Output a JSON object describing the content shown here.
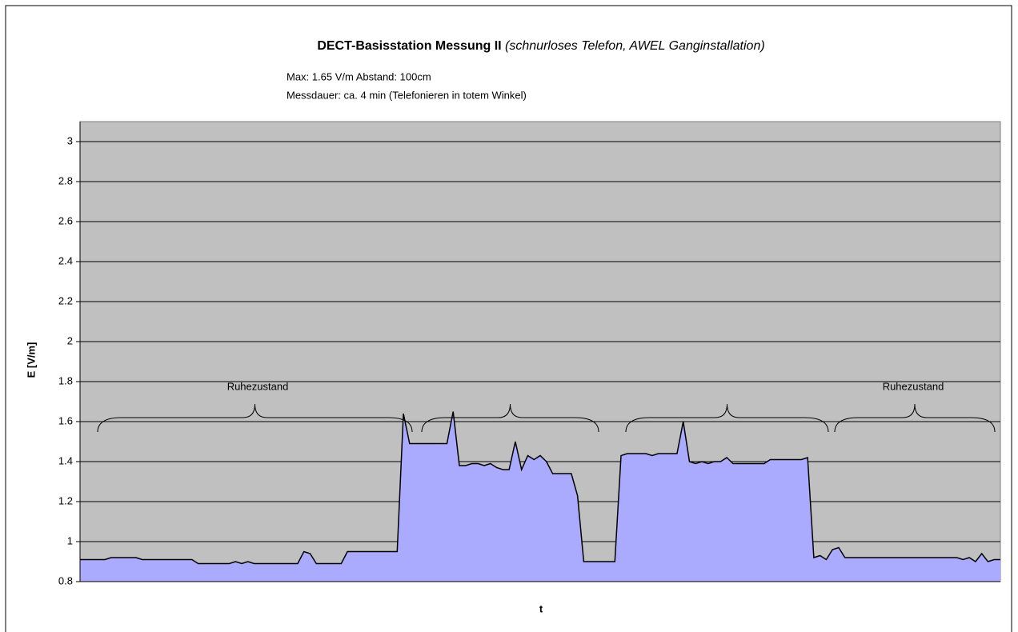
{
  "chart_data": {
    "type": "area",
    "title": "DECT-Basisstation Messung II",
    "title_note": "(schnurloses Telefon, AWEL Ganginstallation)",
    "subtitle": [
      "Max: 1.65 V/m  Abstand: 100cm",
      "Messdauer: ca. 4 min (Telefonieren in totem Winkel)"
    ],
    "y_label": "E [V/m]",
    "x_label": "t",
    "annotations": [
      {
        "text": "Ruhezustand"
      },
      {
        "text": "Ruhezustand"
      }
    ],
    "color": "#aaaaff",
    "line_color": "#000000",
    "background": "#c0c0c0",
    "grid": true,
    "ylim": [
      0.8,
      3.1
    ],
    "yticks": [
      0.8,
      1,
      1.2,
      1.4,
      1.6,
      1.8,
      2,
      2.2,
      2.4,
      2.6,
      2.8,
      3
    ],
    "values": [
      0.91,
      0.91,
      0.91,
      0.91,
      0.91,
      0.92,
      0.92,
      0.92,
      0.92,
      0.92,
      0.91,
      0.91,
      0.91,
      0.91,
      0.91,
      0.91,
      0.91,
      0.91,
      0.91,
      0.89,
      0.89,
      0.89,
      0.89,
      0.89,
      0.89,
      0.9,
      0.89,
      0.9,
      0.89,
      0.89,
      0.89,
      0.89,
      0.89,
      0.89,
      0.89,
      0.89,
      0.95,
      0.94,
      0.89,
      0.89,
      0.89,
      0.89,
      0.89,
      0.95,
      0.95,
      0.95,
      0.95,
      0.95,
      0.95,
      0.95,
      0.95,
      0.95,
      1.64,
      1.49,
      1.49,
      1.49,
      1.49,
      1.49,
      1.49,
      1.49,
      1.65,
      1.38,
      1.38,
      1.39,
      1.39,
      1.38,
      1.39,
      1.37,
      1.36,
      1.36,
      1.5,
      1.36,
      1.43,
      1.41,
      1.43,
      1.4,
      1.34,
      1.34,
      1.34,
      1.34,
      1.23,
      0.9,
      0.9,
      0.9,
      0.9,
      0.9,
      0.9,
      1.43,
      1.44,
      1.44,
      1.44,
      1.44,
      1.43,
      1.44,
      1.44,
      1.44,
      1.44,
      1.6,
      1.4,
      1.39,
      1.4,
      1.39,
      1.4,
      1.4,
      1.42,
      1.39,
      1.39,
      1.39,
      1.39,
      1.39,
      1.39,
      1.41,
      1.41,
      1.41,
      1.41,
      1.41,
      1.41,
      1.42,
      0.92,
      0.93,
      0.91,
      0.96,
      0.97,
      0.92,
      0.92,
      0.92,
      0.92,
      0.92,
      0.92,
      0.92,
      0.92,
      0.92,
      0.92,
      0.92,
      0.92,
      0.92,
      0.92,
      0.92,
      0.92,
      0.92,
      0.92,
      0.92,
      0.91,
      0.92,
      0.9,
      0.94,
      0.9,
      0.91,
      0.91
    ]
  }
}
